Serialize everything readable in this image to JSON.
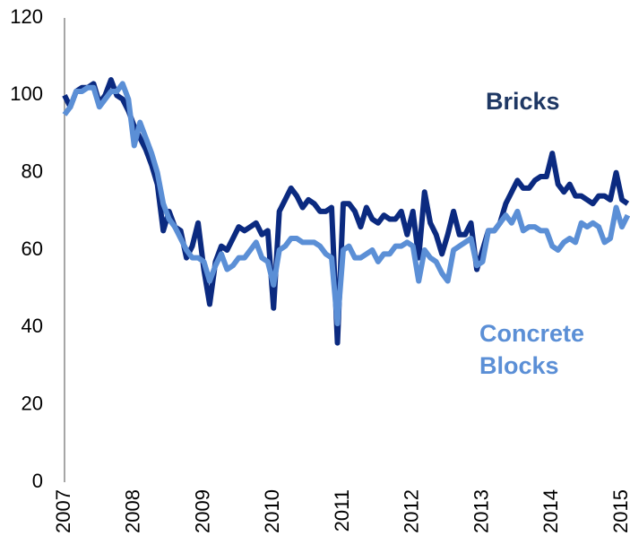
{
  "chart_data": {
    "type": "line",
    "xlim": [
      2007,
      2015.1
    ],
    "xticks": [
      2007,
      2008,
      2009,
      2010,
      2011,
      2012,
      2013,
      2014,
      2015
    ],
    "ylim": [
      0,
      120
    ],
    "yticks": [
      0,
      20,
      40,
      60,
      80,
      100,
      120
    ],
    "x": [
      2007,
      2007.083,
      2007.167,
      2007.25,
      2007.333,
      2007.417,
      2007.5,
      2007.583,
      2007.667,
      2007.75,
      2007.833,
      2007.917,
      2008,
      2008.083,
      2008.167,
      2008.25,
      2008.333,
      2008.417,
      2008.5,
      2008.583,
      2008.667,
      2008.75,
      2008.833,
      2008.917,
      2009,
      2009.083,
      2009.167,
      2009.25,
      2009.333,
      2009.417,
      2009.5,
      2009.583,
      2009.667,
      2009.75,
      2009.833,
      2009.917,
      2010,
      2010.083,
      2010.167,
      2010.25,
      2010.333,
      2010.417,
      2010.5,
      2010.583,
      2010.667,
      2010.75,
      2010.833,
      2010.917,
      2011,
      2011.083,
      2011.167,
      2011.25,
      2011.333,
      2011.417,
      2011.5,
      2011.583,
      2011.667,
      2011.75,
      2011.833,
      2011.917,
      2012,
      2012.083,
      2012.167,
      2012.25,
      2012.333,
      2012.417,
      2012.5,
      2012.583,
      2012.667,
      2012.75,
      2012.833,
      2012.917,
      2013,
      2013.083,
      2013.167,
      2013.25,
      2013.333,
      2013.417,
      2013.5,
      2013.583,
      2013.667,
      2013.75,
      2013.833,
      2013.917,
      2014,
      2014.083,
      2014.167,
      2014.25,
      2014.333,
      2014.417,
      2014.5,
      2014.583,
      2014.667,
      2014.75,
      2014.833,
      2014.917,
      2015,
      2015.083
    ],
    "series": [
      {
        "name": "Bricks",
        "color": "#0b2a80",
        "label_color": "#1f3864",
        "values": [
          100,
          97,
          101,
          102,
          102,
          103,
          98,
          100,
          104,
          100,
          99,
          96,
          92,
          89,
          86,
          82,
          77,
          65,
          70,
          66,
          65,
          58,
          61,
          67,
          55,
          46,
          57,
          61,
          60,
          63,
          66,
          65,
          66,
          67,
          64,
          65,
          45,
          70,
          73,
          76,
          74,
          71,
          73,
          72,
          70,
          70,
          71,
          36,
          72,
          72,
          70,
          66,
          71,
          68,
          67,
          69,
          68,
          68,
          70,
          64,
          70,
          58,
          75,
          67,
          64,
          59,
          64,
          70,
          64,
          64,
          67,
          55,
          60,
          65,
          65,
          67,
          72,
          75,
          78,
          76,
          76,
          78,
          79,
          79,
          85,
          77,
          75,
          77,
          74,
          74,
          73,
          72,
          74,
          74,
          73,
          80,
          73,
          72
        ]
      },
      {
        "name": "Concrete Blocks",
        "color": "#5b8fd6",
        "label_color": "#5b8fd6",
        "values": [
          95,
          97,
          101,
          101,
          102,
          102,
          97,
          99,
          101,
          101,
          103,
          99,
          87,
          93,
          89,
          85,
          80,
          72,
          68,
          66,
          63,
          60,
          58,
          58,
          57,
          52,
          56,
          59,
          55,
          56,
          58,
          58,
          60,
          62,
          58,
          57,
          51,
          60,
          61,
          63,
          63,
          62,
          62,
          62,
          61,
          59,
          58,
          41,
          60,
          61,
          58,
          58,
          59,
          60,
          57,
          59,
          59,
          61,
          61,
          62,
          61,
          52,
          60,
          58,
          57,
          54,
          52,
          60,
          61,
          62,
          63,
          56,
          57,
          65,
          65,
          67,
          69,
          67,
          70,
          65,
          66,
          66,
          65,
          65,
          61,
          60,
          62,
          63,
          62,
          67,
          66,
          67,
          66,
          62,
          63,
          71,
          66,
          69
        ]
      }
    ]
  }
}
